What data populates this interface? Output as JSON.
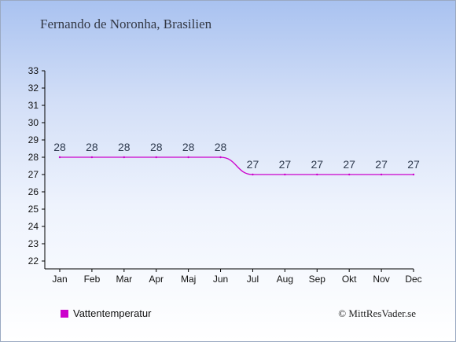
{
  "title": "Fernando de Noronha, Brasilien",
  "colors": {
    "series": "#cc00cc",
    "axis": "#000000"
  },
  "chart_data": {
    "type": "line",
    "categories": [
      "Jan",
      "Feb",
      "Mar",
      "Apr",
      "Maj",
      "Jun",
      "Jul",
      "Aug",
      "Sep",
      "Okt",
      "Nov",
      "Dec"
    ],
    "series": [
      {
        "name": "Vattentemperatur",
        "values": [
          28,
          28,
          28,
          28,
          28,
          28,
          27,
          27,
          27,
          27,
          27,
          27
        ]
      }
    ],
    "ylim": [
      22,
      33
    ],
    "yticks": [
      22,
      23,
      24,
      25,
      26,
      27,
      28,
      29,
      30,
      31,
      32,
      33
    ],
    "grid": false,
    "legend": "bottom-left"
  },
  "legend": {
    "label": "Vattentemperatur"
  },
  "credit": "© MittResVader.se"
}
